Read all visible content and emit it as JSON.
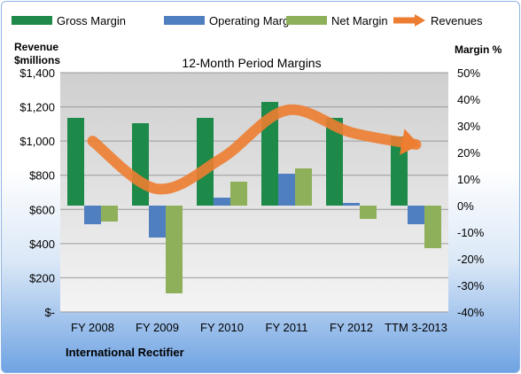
{
  "chart_data": {
    "type": "bar",
    "title": "12-Month Period Margins",
    "company_label": "International Rectifier",
    "left_axis": {
      "label_line1": "Revenue",
      "label_line2": "$millions",
      "min": 0,
      "max": 1400,
      "ticks": [
        0,
        200,
        400,
        600,
        800,
        1000,
        1200,
        1400
      ],
      "tick_labels": [
        "$-",
        "$200",
        "$400",
        "$600",
        "$800",
        "$1,000",
        "$1,200",
        "$1,400"
      ]
    },
    "right_axis": {
      "label": "Margin %",
      "min": -40,
      "max": 50,
      "ticks": [
        -40,
        -30,
        -20,
        -10,
        0,
        10,
        20,
        30,
        40,
        50
      ],
      "tick_labels": [
        "-40%",
        "-30%",
        "-20%",
        "-10%",
        "0%",
        "10%",
        "20%",
        "30%",
        "40%",
        "50%"
      ]
    },
    "categories": [
      "FY 2008",
      "FY 2009",
      "FY 2010",
      "FY 2011",
      "FY 2012",
      "TTM 3-2013"
    ],
    "series": [
      {
        "name": "Gross Margin",
        "type": "bar",
        "axis": "right",
        "color": "#1e8a4a",
        "values": [
          33,
          31,
          33,
          39,
          33,
          26
        ]
      },
      {
        "name": "Operating Margin",
        "type": "bar",
        "axis": "right",
        "color": "#4f7fbf",
        "values": [
          -7,
          -12,
          3,
          12,
          1,
          -7
        ]
      },
      {
        "name": "Net Margin",
        "type": "bar",
        "axis": "right",
        "color": "#8fb05a",
        "values": [
          -6,
          -33,
          9,
          14,
          -5,
          -16
        ]
      },
      {
        "name": "Revenues",
        "type": "line",
        "axis": "left",
        "color": "#ed7d31",
        "values": [
          1000,
          720,
          900,
          1180,
          1050,
          980
        ]
      }
    ],
    "grid": true,
    "legend_position": "top"
  }
}
